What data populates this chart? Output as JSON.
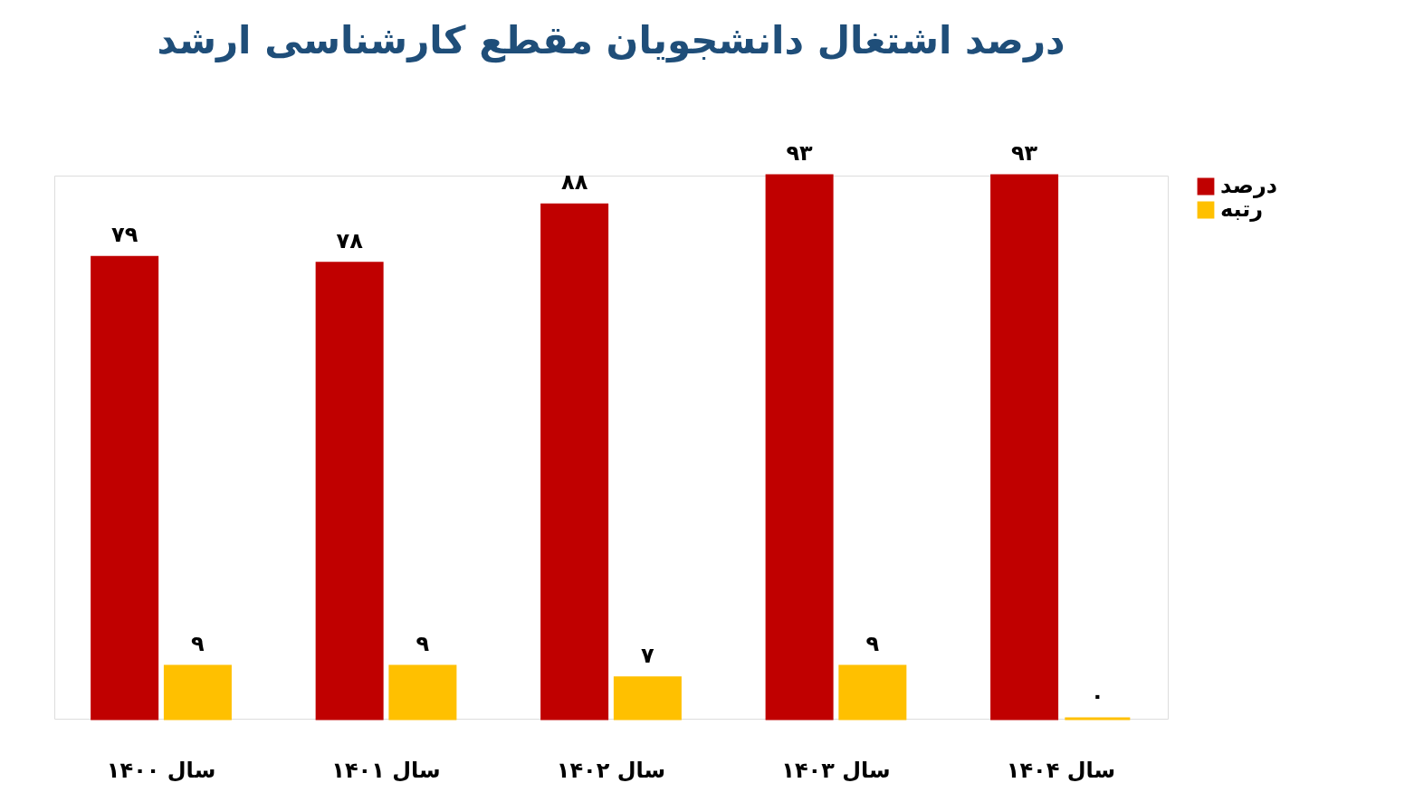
{
  "chart_data": {
    "type": "bar",
    "title": "درصد اشتغال دانشجویان مقطع کارشناسی ارشد",
    "categories": [
      "سال ۱۴۰۰",
      "سال ۱۴۰۱",
      "سال ۱۴۰۲",
      "سال ۱۴۰۳",
      "سال ۱۴۰۴"
    ],
    "series": [
      {
        "name": "درصد",
        "color": "#c00000",
        "values": [
          79,
          78,
          88,
          93,
          93
        ],
        "value_labels": [
          "۷۹",
          "۷۸",
          "۸۸",
          "۹۳",
          "۹۳"
        ]
      },
      {
        "name": "رتبه",
        "color": "#ffc000",
        "values": [
          9,
          9,
          7,
          9,
          0
        ],
        "value_labels": [
          "۹",
          "۹",
          "۷",
          "۹",
          "۰"
        ]
      }
    ],
    "legend": "right",
    "grid": false
  }
}
